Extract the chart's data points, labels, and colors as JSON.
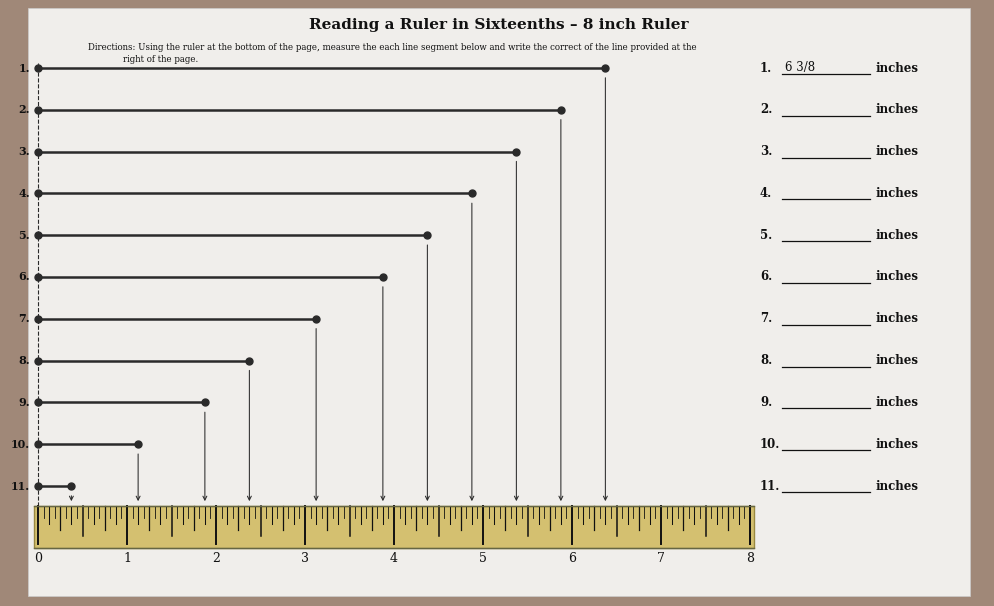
{
  "title": "Reading a Ruler in Sixteenths – 8 inch Ruler",
  "dir1": "Directions: Using the ruler at the bottom of the page, measure the each line segment below and write the correct of the line provided at the",
  "dir2": "right of the page.",
  "bg_color": "#a08878",
  "paper_color": "#f0eeeb",
  "line_color": "#2a2a2a",
  "ruler_bg": "#d4c070",
  "tick_color": "#111111",
  "num_lines": 11,
  "line_lengths": [
    6.375,
    5.875,
    5.375,
    4.875,
    4.375,
    3.875,
    3.125,
    2.375,
    1.875,
    1.125,
    0.375
  ],
  "ruler_max": 8,
  "answer1_value": "6 3/8"
}
